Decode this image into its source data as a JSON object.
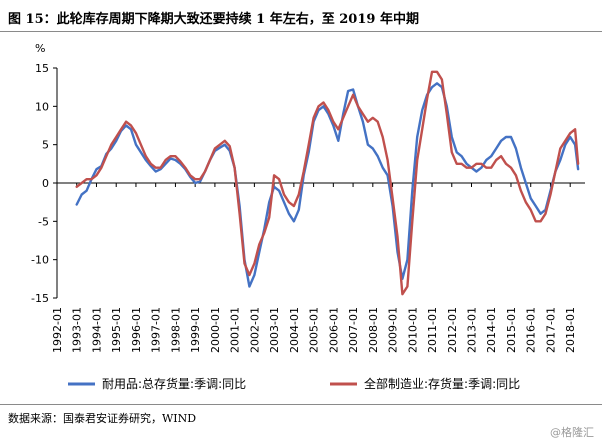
{
  "header": {
    "title": "图 15：此轮库存周期下降期大致还要持续 1 年左右，至 2019 年中期"
  },
  "footer": {
    "source": "数据来源：国泰君安证券研究，WIND",
    "watermark": "@格隆汇"
  },
  "chart_data": {
    "type": "line",
    "title": "",
    "ylabel": "%",
    "xlabel": "",
    "ylim": [
      -15,
      15
    ],
    "yticks": [
      15,
      10,
      5,
      0,
      -5,
      -10,
      -15
    ],
    "xlim": [
      1992.0,
      2018.75
    ],
    "xticks": [
      "1992-01",
      "1993-01",
      "1994-01",
      "1995-01",
      "1996-01",
      "1997-01",
      "1998-01",
      "1999-01",
      "2000-01",
      "2001-01",
      "2002-01",
      "2003-01",
      "2004-01",
      "2005-01",
      "2006-01",
      "2007-01",
      "2008-01",
      "2009-01",
      "2010-01",
      "2011-01",
      "2012-01",
      "2013-01",
      "2014-01",
      "2015-01",
      "2016-01",
      "2017-01",
      "2018-01"
    ],
    "grid": false,
    "legend": "bottom",
    "colors": {
      "durable": "#4472c4",
      "manufacturing": "#c0504d"
    },
    "series": [
      {
        "name": "耐用品:总存货量:季调:同比",
        "x": [
          1993.0,
          1993.25,
          1993.5,
          1993.75,
          1994.0,
          1994.25,
          1994.5,
          1994.75,
          1995.0,
          1995.25,
          1995.5,
          1995.75,
          1996.0,
          1996.25,
          1996.5,
          1996.75,
          1997.0,
          1997.25,
          1997.5,
          1997.75,
          1998.0,
          1998.25,
          1998.5,
          1998.75,
          1999.0,
          1999.25,
          1999.5,
          1999.75,
          2000.0,
          2000.25,
          2000.5,
          2000.75,
          2001.0,
          2001.25,
          2001.5,
          2001.75,
          2002.0,
          2002.25,
          2002.5,
          2002.75,
          2003.0,
          2003.25,
          2003.5,
          2003.75,
          2004.0,
          2004.25,
          2004.5,
          2004.75,
          2005.0,
          2005.25,
          2005.5,
          2005.75,
          2006.0,
          2006.25,
          2006.5,
          2006.75,
          2007.0,
          2007.25,
          2007.5,
          2007.75,
          2008.0,
          2008.25,
          2008.5,
          2008.75,
          2009.0,
          2009.25,
          2009.5,
          2009.75,
          2010.0,
          2010.25,
          2010.5,
          2010.75,
          2011.0,
          2011.25,
          2011.5,
          2011.75,
          2012.0,
          2012.25,
          2012.5,
          2012.75,
          2013.0,
          2013.25,
          2013.5,
          2013.75,
          2014.0,
          2014.25,
          2014.5,
          2014.75,
          2015.0,
          2015.25,
          2015.5,
          2015.75,
          2016.0,
          2016.25,
          2016.5,
          2016.75,
          2017.0,
          2017.25,
          2017.5,
          2017.75,
          2018.0,
          2018.25,
          2018.4
        ],
        "values": [
          -2.8,
          -1.5,
          -1.0,
          0.5,
          1.8,
          2.2,
          3.8,
          4.5,
          5.5,
          6.8,
          7.5,
          7.0,
          5.0,
          4.0,
          3.0,
          2.2,
          1.5,
          1.8,
          2.5,
          3.2,
          3.0,
          2.5,
          1.8,
          0.8,
          0.0,
          0.2,
          1.5,
          3.0,
          4.2,
          4.6,
          5.0,
          4.2,
          2.0,
          -3.0,
          -10.0,
          -13.5,
          -12.0,
          -9.0,
          -6.0,
          -2.5,
          -0.5,
          -1.0,
          -2.5,
          -4.0,
          -5.0,
          -3.5,
          1.0,
          4.0,
          8.0,
          9.5,
          10.0,
          9.0,
          7.5,
          5.5,
          9.0,
          12.0,
          12.2,
          10.0,
          8.0,
          5.0,
          4.5,
          3.5,
          2.0,
          1.0,
          -3.0,
          -9.0,
          -12.5,
          -10.0,
          -1.0,
          6.0,
          9.5,
          11.5,
          12.5,
          13.0,
          12.5,
          10.0,
          6.0,
          4.0,
          3.5,
          2.5,
          2.0,
          1.5,
          2.0,
          3.0,
          3.5,
          4.5,
          5.5,
          6.0,
          6.0,
          4.5,
          2.0,
          0.0,
          -2.0,
          -3.0,
          -4.0,
          -3.5,
          -1.0,
          1.5,
          3.0,
          5.0,
          6.0,
          5.0,
          1.8
        ]
      },
      {
        "name": "全部制造业:存货量:季调:同比",
        "x": [
          1993.0,
          1993.25,
          1993.5,
          1993.75,
          1994.0,
          1994.25,
          1994.5,
          1994.75,
          1995.0,
          1995.25,
          1995.5,
          1995.75,
          1996.0,
          1996.25,
          1996.5,
          1996.75,
          1997.0,
          1997.25,
          1997.5,
          1997.75,
          1998.0,
          1998.25,
          1998.5,
          1998.75,
          1999.0,
          1999.25,
          1999.5,
          1999.75,
          2000.0,
          2000.25,
          2000.5,
          2000.75,
          2001.0,
          2001.25,
          2001.5,
          2001.75,
          2002.0,
          2002.25,
          2002.5,
          2002.75,
          2003.0,
          2003.25,
          2003.5,
          2003.75,
          2004.0,
          2004.25,
          2004.5,
          2004.75,
          2005.0,
          2005.25,
          2005.5,
          2005.75,
          2006.0,
          2006.25,
          2006.5,
          2006.75,
          2007.0,
          2007.25,
          2007.5,
          2007.75,
          2008.0,
          2008.25,
          2008.5,
          2008.75,
          2009.0,
          2009.25,
          2009.5,
          2009.75,
          2010.0,
          2010.25,
          2010.5,
          2010.75,
          2011.0,
          2011.25,
          2011.5,
          2011.75,
          2012.0,
          2012.25,
          2012.5,
          2012.75,
          2013.0,
          2013.25,
          2013.5,
          2013.75,
          2014.0,
          2014.25,
          2014.5,
          2014.75,
          2015.0,
          2015.25,
          2015.5,
          2015.75,
          2016.0,
          2016.25,
          2016.5,
          2016.75,
          2017.0,
          2017.25,
          2017.5,
          2017.75,
          2018.0,
          2018.25,
          2018.4
        ],
        "values": [
          -0.5,
          0.0,
          0.5,
          0.5,
          1.0,
          2.0,
          3.5,
          5.0,
          6.0,
          7.0,
          8.0,
          7.5,
          6.5,
          5.0,
          3.5,
          2.5,
          2.0,
          2.0,
          3.0,
          3.5,
          3.5,
          2.8,
          2.0,
          1.0,
          0.5,
          0.5,
          1.5,
          3.0,
          4.5,
          5.0,
          5.5,
          4.8,
          2.0,
          -4.0,
          -10.5,
          -12.0,
          -10.5,
          -8.0,
          -6.5,
          -4.5,
          1.0,
          0.5,
          -1.5,
          -2.5,
          -3.0,
          -1.5,
          1.5,
          5.0,
          8.5,
          10.0,
          10.5,
          9.5,
          8.0,
          7.0,
          8.5,
          10.0,
          11.5,
          10.0,
          9.0,
          8.0,
          8.5,
          8.0,
          6.0,
          3.0,
          -2.0,
          -7.0,
          -14.5,
          -13.5,
          -5.0,
          3.0,
          7.0,
          11.0,
          14.5,
          14.5,
          13.5,
          9.0,
          4.0,
          2.5,
          2.5,
          2.0,
          2.0,
          2.5,
          2.5,
          2.0,
          2.0,
          3.0,
          3.5,
          2.5,
          2.0,
          1.0,
          -1.0,
          -2.5,
          -3.5,
          -5.0,
          -5.0,
          -4.0,
          -1.5,
          1.5,
          4.5,
          5.5,
          6.5,
          7.0,
          2.5
        ]
      }
    ]
  }
}
